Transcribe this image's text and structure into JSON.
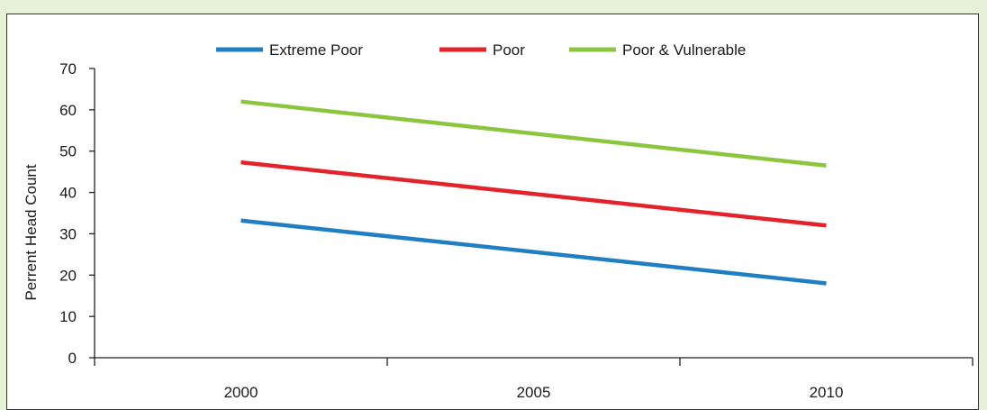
{
  "chart_data": {
    "type": "line",
    "title": "",
    "xlabel": "",
    "ylabel": "Perrent Head Count",
    "categories": [
      "2000",
      "2005",
      "2010"
    ],
    "x": [
      2000,
      2010
    ],
    "ylim": [
      0,
      70
    ],
    "yticks": [
      0,
      10,
      20,
      30,
      40,
      50,
      60,
      70
    ],
    "grid": false,
    "legend_position": "top-center",
    "series": [
      {
        "name": "Extreme Poor",
        "color": "#1f7fc0",
        "values": [
          33.2,
          18.0
        ]
      },
      {
        "name": "Poor",
        "color": "#e32229",
        "values": [
          47.3,
          32.0
        ]
      },
      {
        "name": "Poor & Vulnerable",
        "color": "#8cc63f",
        "values": [
          62.0,
          46.5
        ]
      }
    ]
  }
}
